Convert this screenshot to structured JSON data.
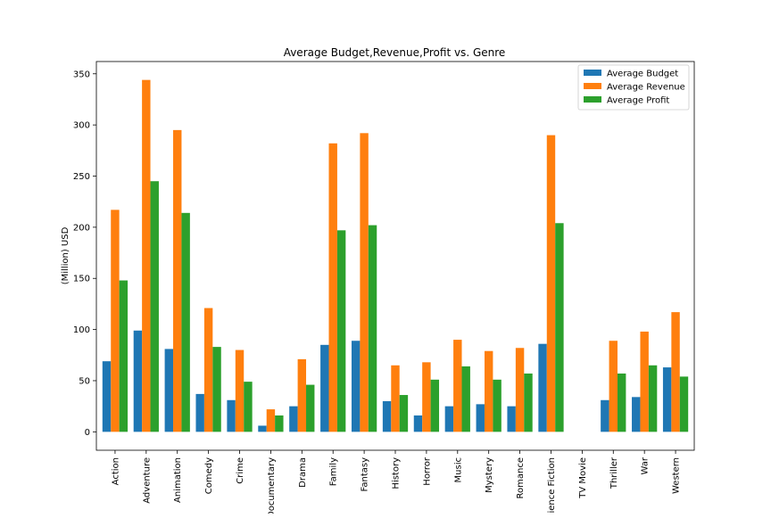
{
  "chart_data": {
    "type": "bar",
    "title": "Average Budget,Revenue,Profit vs. Genre",
    "xlabel": "",
    "ylabel": "(Million) USD",
    "ylim": [
      -18,
      362
    ],
    "yticks": [
      0,
      50,
      100,
      150,
      200,
      250,
      300,
      350
    ],
    "grid": false,
    "legend_position": "top-right",
    "categories": [
      "Action",
      "Adventure",
      "Animation",
      "Comedy",
      "Crime",
      "Documentary",
      "Drama",
      "Family",
      "Fantasy",
      "History",
      "Horror",
      "Music",
      "Mystery",
      "Romance",
      "Science Fiction",
      "TV Movie",
      "Thriller",
      "War",
      "Western"
    ],
    "series": [
      {
        "name": "Average Budget",
        "color": "#1f77b4",
        "values": [
          69,
          99,
          81,
          37,
          31,
          6,
          25,
          85,
          89,
          30,
          16,
          25,
          27,
          25,
          86,
          0,
          31,
          34,
          63
        ]
      },
      {
        "name": "Average Revenue",
        "color": "#ff7f0e",
        "values": [
          217,
          344,
          295,
          121,
          80,
          22,
          71,
          282,
          292,
          65,
          68,
          90,
          79,
          82,
          290,
          0,
          89,
          98,
          117
        ]
      },
      {
        "name": "Average Profit",
        "color": "#2ca02c",
        "values": [
          148,
          245,
          214,
          83,
          49,
          16,
          46,
          197,
          202,
          36,
          51,
          64,
          51,
          57,
          204,
          0,
          57,
          65,
          54
        ]
      }
    ]
  }
}
